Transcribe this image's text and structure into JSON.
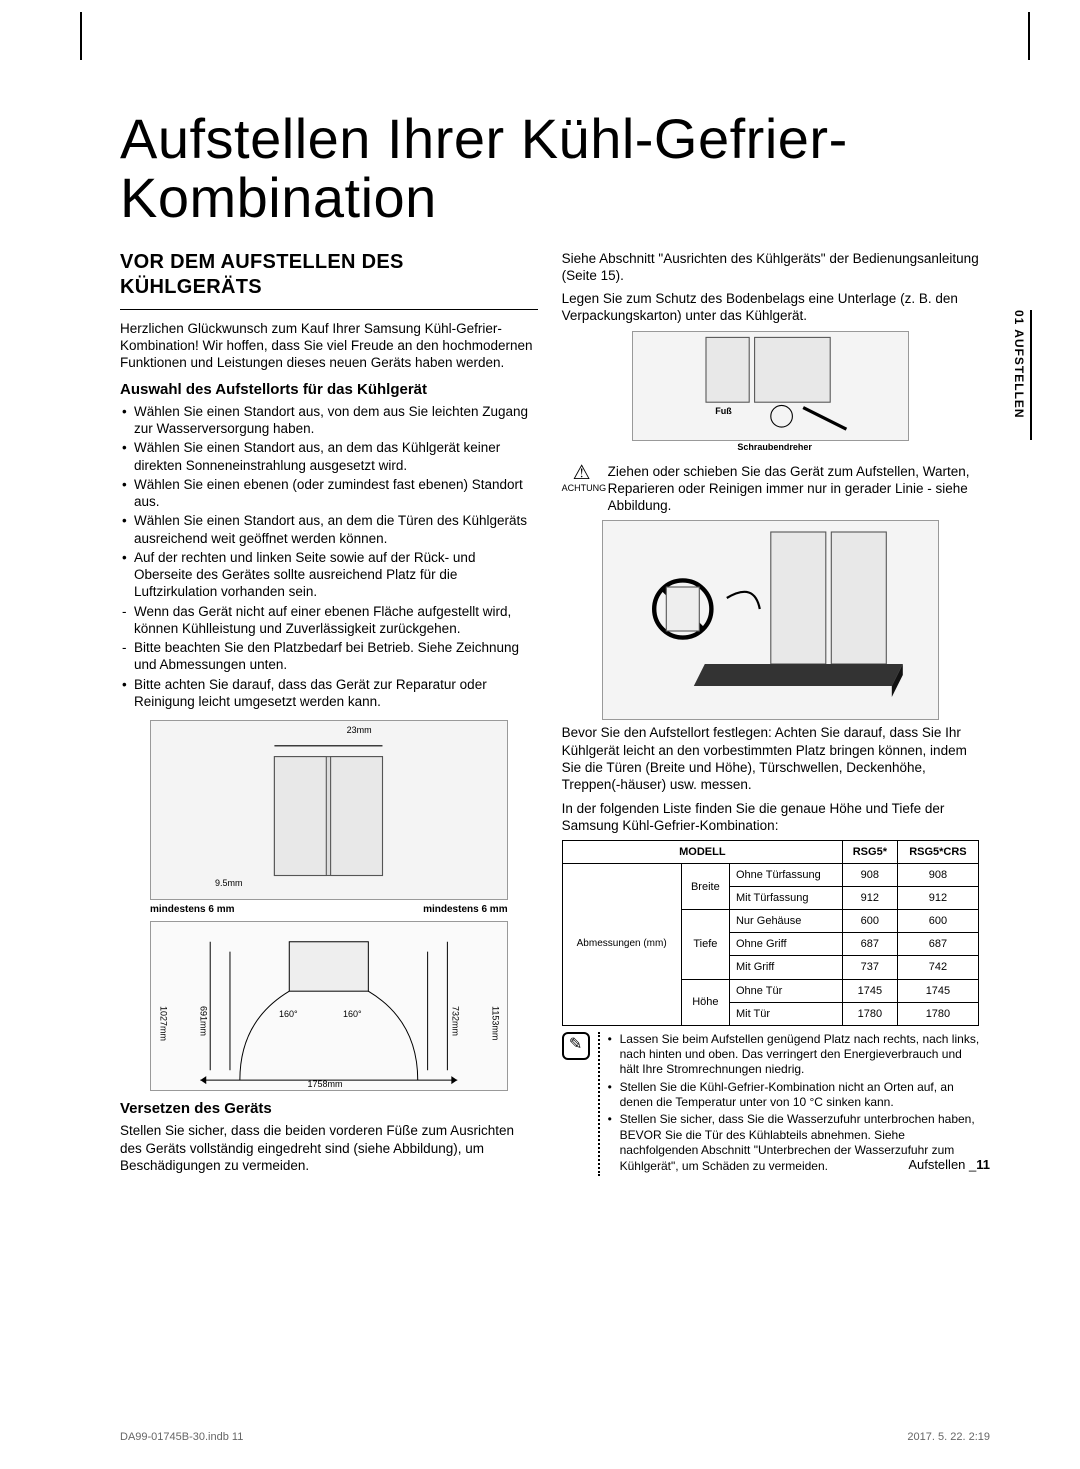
{
  "title": "Aufstellen Ihrer Kühl-Gefrier-Kombination",
  "sideTab": "01 AUFSTELLEN",
  "left": {
    "h2": "VOR DEM AUFSTELLEN DES KÜHLGERÄTS",
    "intro": "Herzlichen Glückwunsch zum Kauf Ihrer Samsung Kühl-Gefrier-Kombination! Wir hoffen, dass Sie viel Freude an den hochmodernen Funktionen und Leistungen dieses neuen Geräts haben werden.",
    "sub1": "Auswahl des Aufstellorts für das Kühlgerät",
    "bullets": [
      {
        "t": "bullet",
        "text": "Wählen Sie einen Standort aus, von dem aus Sie leichten Zugang zur Wasserversorgung haben."
      },
      {
        "t": "bullet",
        "text": "Wählen Sie einen Standort aus, an dem das Kühlgerät keiner direkten Sonneneinstrahlung ausgesetzt wird."
      },
      {
        "t": "bullet",
        "text": "Wählen Sie einen ebenen (oder zumindest fast ebenen) Standort aus."
      },
      {
        "t": "bullet",
        "text": "Wählen Sie einen Standort aus, an dem die Türen des Kühlgeräts ausreichend weit geöffnet werden können."
      },
      {
        "t": "bullet",
        "text": "Auf der rechten und linken Seite sowie auf der Rück- und Oberseite des Gerätes sollte ausreichend Platz für die Luftzirkulation vorhanden sein."
      },
      {
        "t": "dash",
        "text": "Wenn das Gerät nicht auf einer ebenen Fläche aufgestellt wird, können Kühlleistung und Zuverlässigkeit zurückgehen."
      },
      {
        "t": "dash",
        "text": "Bitte beachten Sie den Platzbedarf bei Betrieb. Siehe Zeichnung und Abmessungen unten."
      },
      {
        "t": "bullet",
        "text": "Bitte achten Sie darauf, dass das Gerät zur Reparatur oder Reinigung leicht umgesetzt werden kann."
      }
    ],
    "dim": {
      "d23": "23mm",
      "d95": "9.5mm",
      "min6l": "mindestens 6 mm",
      "min6r": "mindestens 6 mm",
      "d1027": "1027mm",
      "d691": "691mm",
      "d160a": "160°",
      "d160b": "160°",
      "d732": "732mm",
      "d1153": "1153mm",
      "d1758": "1758mm"
    },
    "sub2": "Versetzen des Geräts",
    "p2": "Stellen Sie sicher, dass die beiden vorderen Füße zum Ausrichten des Geräts vollständig eingedreht sind (siehe Abbildung), um Beschädigungen zu vermeiden."
  },
  "right": {
    "p1": "Siehe Abschnitt \"Ausrichten des Kühlgeräts\" der Bedienungsanleitung (Seite 15).",
    "p2": "Legen Sie zum Schutz des Bodenbelags eine Unterlage (z. B. den Verpackungskarton) unter das Kühlgerät.",
    "figLabels": {
      "fuss": "Fuß",
      "schr": "Schraubendreher"
    },
    "achtungLbl": "ACHTUNG",
    "achtungText": "Ziehen oder schieben Sie das Gerät zum Aufstellen, Warten, Reparieren oder Reinigen immer nur in gerader Linie - siehe Abbildung.",
    "p3": "Bevor Sie den Aufstellort festlegen: Achten Sie darauf, dass Sie Ihr Kühlgerät leicht an den vorbestimmten Platz bringen können, indem Sie die Türen (Breite und Höhe), Türschwellen, Deckenhöhe, Treppen(-häuser) usw. messen.",
    "p4": "In der folgenden Liste finden Sie die genaue Höhe und Tiefe der Samsung Kühl-Gefrier-Kombination:",
    "table": {
      "head": [
        "MODELL",
        "RSG5*",
        "RSG5*CRS"
      ],
      "rowHdr": "Abmessungen (mm)",
      "groups": [
        {
          "g": "Breite",
          "rows": [
            [
              "Ohne Türfassung",
              "908",
              "908"
            ],
            [
              "Mit Türfassung",
              "912",
              "912"
            ]
          ]
        },
        {
          "g": "Tiefe",
          "rows": [
            [
              "Nur Gehäuse",
              "600",
              "600"
            ],
            [
              "Ohne Griff",
              "687",
              "687"
            ],
            [
              "Mit Griff",
              "737",
              "742"
            ]
          ]
        },
        {
          "g": "Höhe",
          "rows": [
            [
              "Ohne Tür",
              "1745",
              "1745"
            ],
            [
              "Mit Tür",
              "1780",
              "1780"
            ]
          ]
        }
      ]
    },
    "notes": [
      "Lassen Sie beim Aufstellen genügend Platz nach rechts, nach links, nach hinten und oben. Das verringert den Energieverbrauch und hält Ihre Stromrechnungen niedrig.",
      "Stellen Sie die Kühl-Gefrier-Kombination nicht an Orten auf, an denen die Temperatur unter von 10 °C sinken kann.",
      "Stellen Sie sicher, dass Sie die Wasserzufuhr unterbrochen haben, BEVOR Sie die Tür des Kühlabteils abnehmen. Siehe nachfolgenden Abschnitt \"Unterbrechen der Wasserzufuhr zum Kühlgerät\", um Schäden zu vermeiden."
    ]
  },
  "footer": {
    "label": "Aufstellen _",
    "page": "11"
  },
  "printFooter": {
    "file": "DA99-01745B-30.indb   11",
    "date": "2017. 5. 22.     2:19"
  }
}
